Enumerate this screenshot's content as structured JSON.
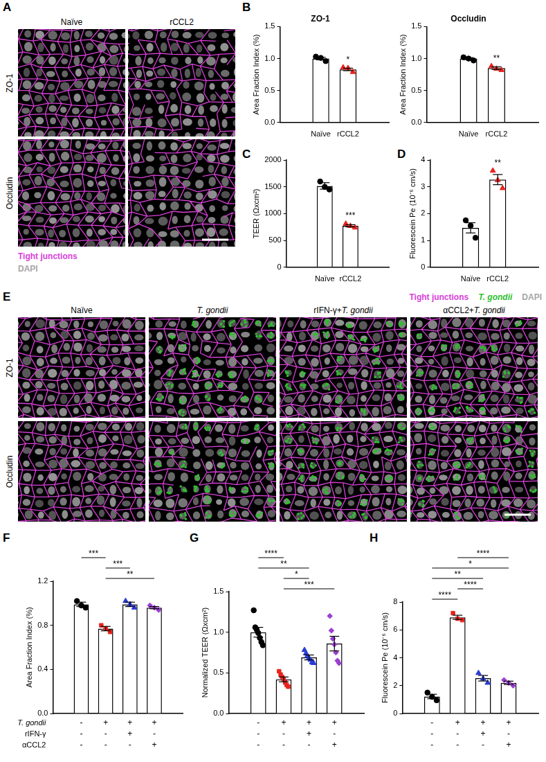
{
  "chart_data": [
    {
      "panel": "B",
      "type": "bar",
      "title": "ZO-1",
      "ylabel": "Area Fraction Index (%)",
      "categories": [
        "Naïve",
        "rCCL2"
      ],
      "values": [
        1.0,
        0.83
      ],
      "error": [
        0.02,
        0.02
      ],
      "color": "#ffffff",
      "points": [
        {
          "values": [
            1.03,
            1.01,
            0.96
          ],
          "color": "#000000",
          "marker": "circle"
        },
        {
          "values": [
            0.86,
            0.85,
            0.79
          ],
          "color": "#e8231e",
          "marker": "triangle"
        }
      ],
      "ylim": [
        0,
        1.5
      ],
      "yticks": [
        {
          "value": 0,
          "label": "0.0"
        },
        {
          "value": 0.5,
          "label": "0.5"
        },
        {
          "value": 1,
          "label": "1.0"
        },
        {
          "value": 1.5,
          "label": "1.5"
        }
      ],
      "grid": false,
      "annotations": [
        {
          "category": "rCCL2",
          "text": "*"
        }
      ]
    },
    {
      "type": "bar",
      "title": "Occludin",
      "ylabel": "Area Fraction Index (%)",
      "categories": [
        "Naïve",
        "rCCL2"
      ],
      "values": [
        1.0,
        0.85
      ],
      "error": [
        0.015,
        0.02
      ],
      "color": "#ffffff",
      "points": [
        {
          "values": [
            1.02,
            1.0,
            0.97
          ],
          "color": "#000000",
          "marker": "circle"
        },
        {
          "values": [
            0.88,
            0.84,
            0.82
          ],
          "color": "#e8231e",
          "marker": "triangle"
        }
      ],
      "ylim": [
        0,
        1.5
      ],
      "yticks": [
        {
          "value": 0,
          "label": "0.0"
        },
        {
          "value": 0.5,
          "label": "0.5"
        },
        {
          "value": 1,
          "label": "1.0"
        },
        {
          "value": 1.5,
          "label": "1.5"
        }
      ],
      "grid": false,
      "annotations": [
        {
          "category": "rCCL2",
          "text": "**"
        }
      ]
    },
    {
      "panel": "C",
      "type": "bar",
      "ylabel": "TEER (Ωxcm²)",
      "categories": [
        "Naïve",
        "rCCL2"
      ],
      "values": [
        1517,
        773
      ],
      "error": [
        60,
        20
      ],
      "color": "#ffffff",
      "points": [
        {
          "values": [
            1600,
            1500,
            1450
          ],
          "color": "#000000",
          "marker": "circle"
        },
        {
          "values": [
            810,
            770,
            740
          ],
          "color": "#e8231e",
          "marker": "triangle"
        }
      ],
      "ylim": [
        0,
        2000
      ],
      "yticks": [
        0,
        500,
        1000,
        1500,
        2000
      ],
      "grid": false,
      "annotations": [
        {
          "category": "rCCL2",
          "text": "***"
        }
      ]
    },
    {
      "panel": "D",
      "type": "bar",
      "ylabel": "Fluorescein Pe (10⁻⁶ cm/s)",
      "categories": [
        "Naïve",
        "rCCL2"
      ],
      "values": [
        1.47,
        3.27
      ],
      "error": [
        0.19,
        0.19
      ],
      "color": "#ffffff",
      "points": [
        {
          "values": [
            1.75,
            1.55,
            1.1
          ],
          "color": "#000000",
          "marker": "circle"
        },
        {
          "values": [
            3.6,
            3.25,
            2.95
          ],
          "color": "#e8231e",
          "marker": "triangle"
        }
      ],
      "ylim": [
        0,
        4
      ],
      "yticks": [
        0,
        1,
        2,
        3,
        4
      ],
      "grid": false,
      "annotations": [
        {
          "category": "rCCL2",
          "text": "**"
        }
      ]
    },
    {
      "panel": "F",
      "type": "bar",
      "ylabel": "Area Fraction Index (%)",
      "categories": [
        null,
        null,
        null,
        null
      ],
      "values": [
        0.99,
        0.77,
        0.99,
        0.96
      ],
      "error": [
        0.02,
        0.02,
        0.02,
        0.01
      ],
      "color": "#ffffff",
      "points": [
        {
          "values": [
            1.02,
            0.98,
            0.96
          ],
          "color": "#000000",
          "marker": "circle"
        },
        {
          "values": [
            0.8,
            0.77,
            0.74
          ],
          "color": "#e8231e",
          "marker": "square"
        },
        {
          "values": [
            1.02,
            0.99,
            0.96
          ],
          "color": "#2b3cd6",
          "marker": "triangle"
        },
        {
          "values": [
            0.98,
            0.96,
            0.94
          ],
          "color": "#9b3fcf",
          "marker": "diamond"
        }
      ],
      "ylim": [
        0,
        1.2
      ],
      "yticks": [
        {
          "value": 0,
          "label": "0.0"
        },
        {
          "value": 0.4,
          "label": "0.4"
        },
        {
          "value": 0.8,
          "label": "0.8"
        },
        {
          "value": 1.2,
          "label": "1.2"
        }
      ],
      "grid": false,
      "tick_labels": "y",
      "comparisons": [
        {
          "from": 1,
          "to": 3,
          "text": "**"
        },
        {
          "from": 1,
          "to": 2,
          "text": "***"
        },
        {
          "from": 0,
          "to": 1,
          "text": "***"
        }
      ],
      "conditions": [
        {
          "label": "T. gondii",
          "signs": [
            "-",
            "+",
            "+",
            "+"
          ]
        },
        {
          "label": "rIFN-γ",
          "signs": [
            "-",
            "-",
            "+",
            "-"
          ]
        },
        {
          "label": "αCCL2",
          "signs": [
            "-",
            "-",
            "-",
            "+"
          ]
        }
      ]
    },
    {
      "panel": "G",
      "type": "bar",
      "ylabel": "Normalized TEER (Ωxcm²)",
      "categories": [
        null,
        null,
        null,
        null
      ],
      "values": [
        1.0,
        0.42,
        0.69,
        0.86
      ],
      "error": [
        0.06,
        0.03,
        0.03,
        0.09
      ],
      "color": "#ffffff",
      "points": [
        {
          "values": [
            1.27,
            1.06,
            1.03,
            0.99,
            0.93,
            0.88,
            0.84
          ],
          "color": "#000000",
          "marker": "circle"
        },
        {
          "values": [
            0.52,
            0.48,
            0.45,
            0.42,
            0.38,
            0.35,
            0.33
          ],
          "color": "#e8231e",
          "marker": "square"
        },
        {
          "values": [
            0.78,
            0.74,
            0.71,
            0.68,
            0.66,
            0.63,
            0.62
          ],
          "color": "#2b3cd6",
          "marker": "triangle"
        },
        {
          "values": [
            1.2,
            1.02,
            0.92,
            0.85,
            0.75,
            0.65,
            0.62
          ],
          "color": "#9b3fcf",
          "marker": "diamond"
        }
      ],
      "ylim": [
        0,
        1.5
      ],
      "yticks": [
        {
          "value": 0,
          "label": "0.0"
        },
        {
          "value": 0.5,
          "label": "0.5"
        },
        {
          "value": 1,
          "label": "1.0"
        },
        {
          "value": 1.5,
          "label": "1.5"
        }
      ],
      "grid": false,
      "tick_labels": "y",
      "comparisons": [
        {
          "from": 1,
          "to": 3,
          "text": "***"
        },
        {
          "from": 1,
          "to": 2,
          "text": "*"
        },
        {
          "from": 0,
          "to": 2,
          "text": "**"
        },
        {
          "from": 0,
          "to": 1,
          "text": "****"
        }
      ],
      "conditions": [
        {
          "signs": [
            "-",
            "+",
            "+",
            "+"
          ]
        },
        {
          "signs": [
            "-",
            "-",
            "+",
            "-"
          ]
        },
        {
          "signs": [
            "-",
            "-",
            "-",
            "+"
          ]
        }
      ]
    },
    {
      "panel": "H",
      "type": "bar",
      "ylabel": "Fluorescein Pe (10⁻⁶ cm/s)",
      "categories": [
        null,
        null,
        null,
        null
      ],
      "values": [
        1.22,
        6.9,
        2.53,
        2.2
      ],
      "error": [
        0.16,
        0.15,
        0.2,
        0.12
      ],
      "color": "#ffffff",
      "points": [
        {
          "values": [
            1.5,
            1.2,
            0.95
          ],
          "color": "#000000",
          "marker": "circle"
        },
        {
          "values": [
            7.2,
            6.8,
            6.7
          ],
          "color": "#e8231e",
          "marker": "square"
        },
        {
          "values": [
            2.9,
            2.5,
            2.2
          ],
          "color": "#2b3cd6",
          "marker": "triangle"
        },
        {
          "values": [
            2.4,
            2.2,
            2.0
          ],
          "color": "#9b3fcf",
          "marker": "diamond"
        }
      ],
      "ylim": [
        0,
        8
      ],
      "yticks": [
        0,
        2,
        4,
        6,
        8
      ],
      "grid": false,
      "tick_labels": "y",
      "comparisons": [
        {
          "from": 0,
          "to": 1,
          "text": "****"
        },
        {
          "from": 1,
          "to": 2,
          "text": "****"
        },
        {
          "from": 0,
          "to": 2,
          "text": "**"
        },
        {
          "from": 0,
          "to": 3,
          "text": "*"
        },
        {
          "from": 1,
          "to": 3,
          "text": "****"
        }
      ],
      "conditions": [
        {
          "signs": [
            "-",
            "+",
            "+",
            "+"
          ]
        },
        {
          "signs": [
            "-",
            "-",
            "+",
            "-"
          ]
        },
        {
          "signs": [
            "-",
            "-",
            "-",
            "+"
          ]
        }
      ]
    }
  ],
  "images": [
    {
      "panel": "A",
      "columns": [
        "Naïve",
        "rCCL2"
      ],
      "rows": [
        "ZO-1",
        "Occludin"
      ],
      "key": [
        {
          "text": "Tight junctions",
          "color": "#d940d9"
        },
        {
          "text": "DAPI",
          "color": "#a6a6a6"
        }
      ]
    },
    {
      "panel": "E",
      "columns": [
        "Naïve",
        "T. gondii",
        "rIFN-γ+T. gondii",
        "αCCL2+T. gondii"
      ],
      "rows": [
        "ZO-1",
        "Occludin"
      ],
      "key": [
        {
          "text": "Tight junctions",
          "color": "#d940d9"
        },
        {
          "text": "T. gondii",
          "color": "#2fbf2f",
          "italic": true
        },
        {
          "text": "DAPI",
          "color": "#a6a6a6"
        }
      ]
    }
  ]
}
